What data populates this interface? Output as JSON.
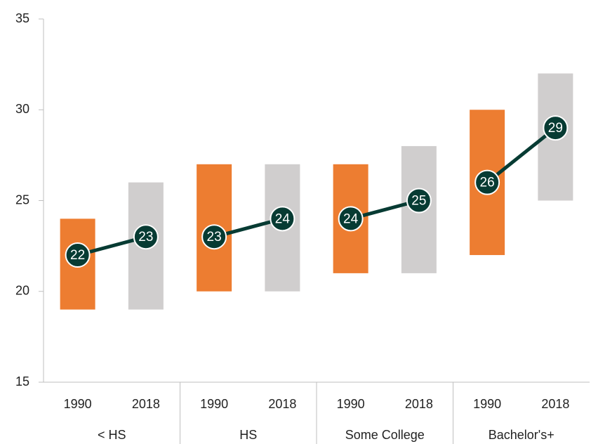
{
  "chart_data": {
    "type": "range_bar",
    "groups": [
      "< HS",
      "HS",
      "Some College",
      "Bachelor's+"
    ],
    "categories": [
      "1990",
      "2018",
      "1990",
      "2018",
      "1990",
      "2018",
      "1990",
      "2018"
    ],
    "low": [
      19,
      19,
      20,
      20,
      21,
      21,
      22,
      25
    ],
    "high": [
      24,
      26,
      27,
      27,
      27,
      28,
      30,
      32
    ],
    "values": [
      22,
      23,
      23,
      24,
      24,
      25,
      26,
      29
    ],
    "bar_colors": [
      "#ed7d31",
      "#d0cece"
    ],
    "marker_color": "#073b33",
    "ylim": [
      15,
      35
    ],
    "yticks": [
      15,
      20,
      25,
      30,
      35
    ]
  }
}
